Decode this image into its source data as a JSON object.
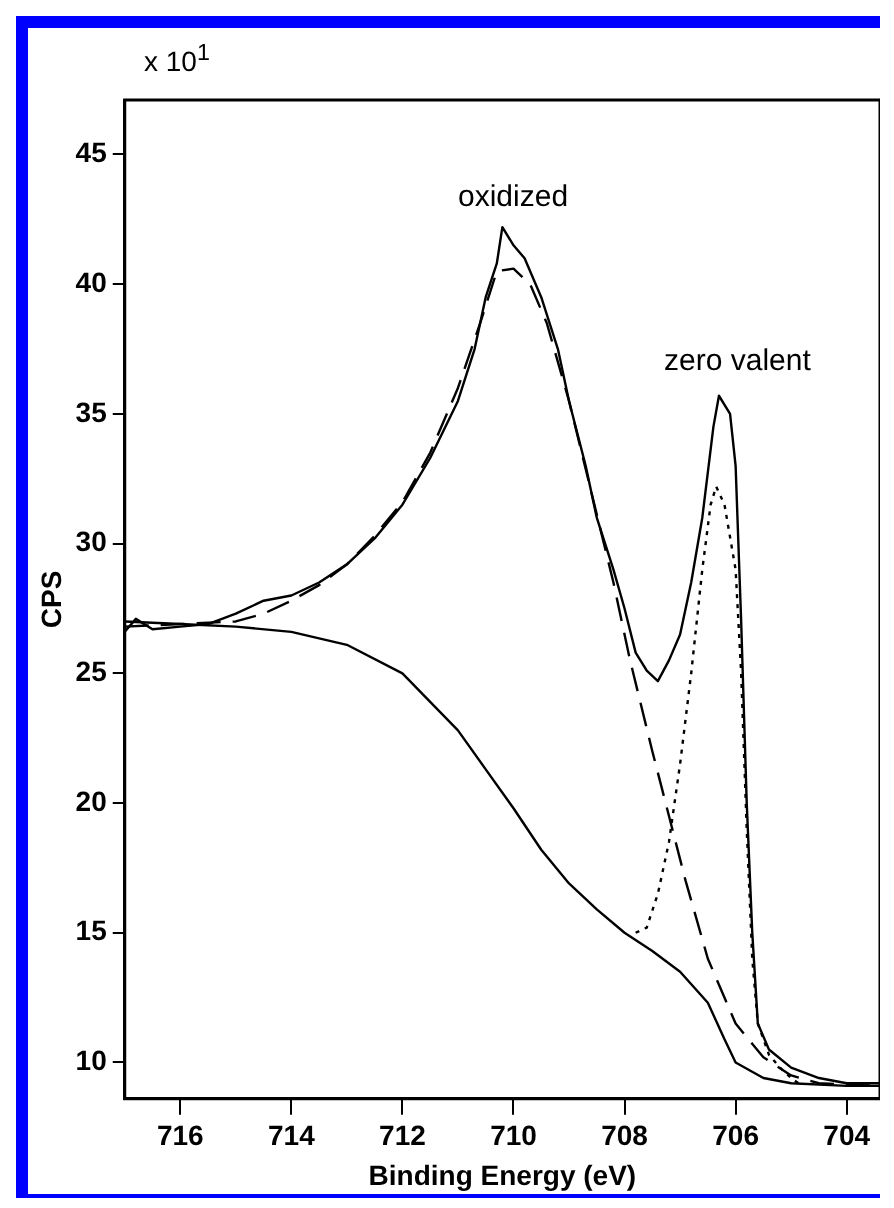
{
  "chart_data": {
    "type": "line",
    "xlabel": "Binding Energy (eV)",
    "ylabel": "CPS",
    "xlim": [
      717,
      703.4
    ],
    "xticks": [
      716,
      714,
      712,
      710,
      708,
      706,
      704
    ],
    "ylim": [
      8.6,
      47.1
    ],
    "yticks": [
      10,
      15,
      20,
      25,
      30,
      35,
      40,
      45
    ],
    "grid": false,
    "legend": false,
    "marker": "none",
    "annotations": [
      "x 10$^{1}$",
      "oxidized",
      "zero valent"
    ],
    "series": [
      {
        "color": "#000000",
        "line_style": "solid",
        "x": [
          717.0,
          716.8,
          716.5,
          716.0,
          715.5,
          715.0,
          714.5,
          714.0,
          713.5,
          713.0,
          712.5,
          712.0,
          711.5,
          711.0,
          710.7,
          710.5,
          710.3,
          710.2,
          710.0,
          709.8,
          709.5,
          709.2,
          709.0,
          708.7,
          708.5,
          708.2,
          708.0,
          707.8,
          707.6,
          707.4,
          707.2,
          707.0,
          706.8,
          706.6,
          706.4,
          706.3,
          706.1,
          706.0,
          705.9,
          705.8,
          705.7,
          705.6,
          705.4,
          705.0,
          704.5,
          704.0,
          703.4
        ],
        "values": [
          26.6,
          27.1,
          26.7,
          26.8,
          26.9,
          27.3,
          27.8,
          28.0,
          28.5,
          29.2,
          30.2,
          31.5,
          33.3,
          35.5,
          37.5,
          39.5,
          40.8,
          42.2,
          41.5,
          41.0,
          39.5,
          37.5,
          35.5,
          33.0,
          31.0,
          29.0,
          27.5,
          25.8,
          25.1,
          24.7,
          25.5,
          26.5,
          28.5,
          31.0,
          34.5,
          35.7,
          35.0,
          33.0,
          27.0,
          20.0,
          15.0,
          11.5,
          10.5,
          9.8,
          9.4,
          9.2,
          9.2
        ]
      },
      {
        "color": "#000000",
        "line_style": "dashed",
        "x": [
          717.0,
          716.0,
          715.0,
          714.5,
          714.0,
          713.5,
          713.0,
          712.5,
          712.0,
          711.5,
          711.0,
          710.6,
          710.3,
          710.0,
          709.7,
          709.4,
          709.0,
          708.6,
          708.2,
          707.9,
          707.5,
          707.2,
          706.9,
          706.5,
          706.0,
          705.5,
          705.0,
          704.5,
          703.4
        ],
        "values": [
          26.8,
          26.9,
          27.0,
          27.3,
          27.8,
          28.4,
          29.2,
          30.3,
          31.6,
          33.5,
          36.0,
          38.5,
          40.5,
          40.6,
          40.0,
          38.5,
          35.5,
          32.0,
          28.5,
          25.5,
          22.0,
          19.5,
          17.0,
          14.0,
          11.5,
          10.2,
          9.5,
          9.2,
          9.1
        ]
      },
      {
        "color": "#000000",
        "line_style": "dotted",
        "x": [
          707.8,
          707.6,
          707.4,
          707.2,
          707.0,
          706.8,
          706.6,
          706.45,
          706.35,
          706.2,
          706.0,
          705.9,
          705.8,
          705.7,
          705.6,
          705.4,
          705.2,
          705.0,
          704.8
        ],
        "values": [
          15.0,
          15.2,
          16.5,
          18.5,
          21.5,
          25.0,
          29.0,
          31.5,
          32.2,
          31.5,
          29.0,
          25.0,
          19.0,
          14.0,
          11.5,
          10.3,
          9.8,
          9.4,
          9.1
        ]
      },
      {
        "color": "#000000",
        "line_style": "solid",
        "x": [
          717.0,
          716.0,
          715.0,
          714.0,
          713.0,
          712.0,
          711.0,
          710.5,
          710.0,
          709.5,
          709.0,
          708.5,
          708.0,
          707.5,
          707.0,
          706.5,
          706.2,
          706.0,
          705.5,
          705.0,
          704.0,
          703.4
        ],
        "values": [
          27.0,
          26.9,
          26.8,
          26.6,
          26.1,
          25.0,
          22.8,
          21.3,
          19.8,
          18.2,
          16.9,
          15.9,
          15.0,
          14.3,
          13.5,
          12.3,
          10.9,
          10.0,
          9.4,
          9.2,
          9.1,
          9.1
        ]
      }
    ]
  }
}
